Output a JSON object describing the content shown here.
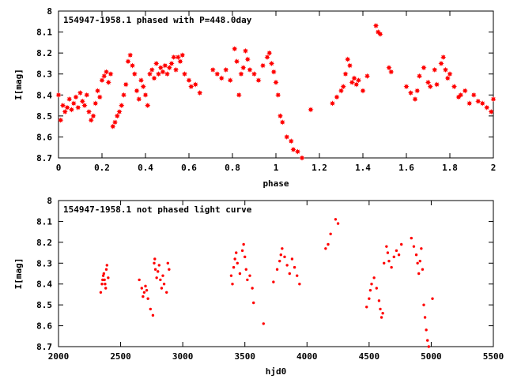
{
  "chart_data": [
    {
      "type": "scatter",
      "title": "154947-1958.1 phased with P=448.0day",
      "xlabel": "phase",
      "ylabel": "I[mag]",
      "xlim": [
        0,
        2
      ],
      "ylim": [
        8.7,
        8
      ],
      "y_inverted": true,
      "x_ticks": [
        "0",
        "0.2",
        "0.4",
        "0.6",
        "0.8",
        "1",
        "1.2",
        "1.4",
        "1.6",
        "1.8",
        "2"
      ],
      "y_ticks": [
        "8",
        "8.1",
        "8.2",
        "8.3",
        "8.4",
        "8.5",
        "8.6",
        "8.7"
      ],
      "marker": "filled-star",
      "color": "#ff0000",
      "series": [
        {
          "points": [
            [
              0.0,
              8.4
            ],
            [
              0.01,
              8.52
            ],
            [
              0.02,
              8.45
            ],
            [
              0.03,
              8.48
            ],
            [
              0.04,
              8.46
            ],
            [
              0.05,
              8.42
            ],
            [
              0.06,
              8.47
            ],
            [
              0.07,
              8.44
            ],
            [
              0.08,
              8.41
            ],
            [
              0.09,
              8.46
            ],
            [
              0.1,
              8.39
            ],
            [
              0.11,
              8.43
            ],
            [
              0.12,
              8.45
            ],
            [
              0.13,
              8.4
            ],
            [
              0.14,
              8.48
            ],
            [
              0.15,
              8.52
            ],
            [
              0.16,
              8.5
            ],
            [
              0.17,
              8.44
            ],
            [
              0.18,
              8.38
            ],
            [
              0.19,
              8.41
            ],
            [
              0.2,
              8.33
            ],
            [
              0.21,
              8.31
            ],
            [
              0.22,
              8.29
            ],
            [
              0.23,
              8.34
            ],
            [
              0.24,
              8.3
            ],
            [
              0.25,
              8.55
            ],
            [
              0.26,
              8.53
            ],
            [
              0.27,
              8.5
            ],
            [
              0.28,
              8.48
            ],
            [
              0.29,
              8.45
            ],
            [
              0.3,
              8.4
            ],
            [
              0.31,
              8.35
            ],
            [
              0.32,
              8.24
            ],
            [
              0.33,
              8.21
            ],
            [
              0.34,
              8.26
            ],
            [
              0.35,
              8.3
            ],
            [
              0.36,
              8.38
            ],
            [
              0.37,
              8.42
            ],
            [
              0.38,
              8.33
            ],
            [
              0.39,
              8.36
            ],
            [
              0.4,
              8.4
            ],
            [
              0.41,
              8.45
            ],
            [
              0.42,
              8.3
            ],
            [
              0.43,
              8.28
            ],
            [
              0.44,
              8.32
            ],
            [
              0.45,
              8.25
            ],
            [
              0.46,
              8.3
            ],
            [
              0.47,
              8.27
            ],
            [
              0.48,
              8.29
            ],
            [
              0.49,
              8.26
            ],
            [
              0.5,
              8.3
            ],
            [
              0.51,
              8.27
            ],
            [
              0.52,
              8.25
            ],
            [
              0.53,
              8.22
            ],
            [
              0.54,
              8.28
            ],
            [
              0.55,
              8.22
            ],
            [
              0.56,
              8.24
            ],
            [
              0.57,
              8.21
            ],
            [
              0.58,
              8.3
            ],
            [
              0.6,
              8.33
            ],
            [
              0.61,
              8.36
            ],
            [
              0.63,
              8.35
            ],
            [
              0.65,
              8.39
            ],
            [
              0.71,
              8.28
            ],
            [
              0.73,
              8.3
            ],
            [
              0.75,
              8.32
            ],
            [
              0.77,
              8.28
            ],
            [
              0.79,
              8.33
            ],
            [
              0.81,
              8.18
            ],
            [
              0.82,
              8.24
            ],
            [
              0.83,
              8.4
            ],
            [
              0.84,
              8.3
            ],
            [
              0.85,
              8.27
            ],
            [
              0.86,
              8.19
            ],
            [
              0.87,
              8.23
            ],
            [
              0.88,
              8.28
            ],
            [
              0.9,
              8.3
            ],
            [
              0.92,
              8.33
            ],
            [
              0.94,
              8.26
            ],
            [
              0.96,
              8.22
            ],
            [
              0.97,
              8.2
            ],
            [
              0.98,
              8.25
            ],
            [
              0.99,
              8.29
            ],
            [
              1.0,
              8.34
            ],
            [
              1.01,
              8.4
            ],
            [
              1.02,
              8.5
            ],
            [
              1.03,
              8.53
            ],
            [
              1.05,
              8.6
            ],
            [
              1.07,
              8.62
            ],
            [
              1.08,
              8.66
            ],
            [
              1.1,
              8.67
            ],
            [
              1.12,
              8.7
            ],
            [
              1.16,
              8.47
            ],
            [
              1.26,
              8.44
            ],
            [
              1.28,
              8.41
            ],
            [
              1.3,
              8.38
            ],
            [
              1.31,
              8.36
            ],
            [
              1.32,
              8.3
            ],
            [
              1.33,
              8.23
            ],
            [
              1.34,
              8.26
            ],
            [
              1.35,
              8.34
            ],
            [
              1.36,
              8.32
            ],
            [
              1.37,
              8.35
            ],
            [
              1.38,
              8.33
            ],
            [
              1.4,
              8.38
            ],
            [
              1.42,
              8.31
            ],
            [
              1.46,
              8.07
            ],
            [
              1.47,
              8.1
            ],
            [
              1.48,
              8.11
            ],
            [
              1.52,
              8.27
            ],
            [
              1.53,
              8.29
            ],
            [
              1.6,
              8.36
            ],
            [
              1.62,
              8.39
            ],
            [
              1.64,
              8.42
            ],
            [
              1.65,
              8.38
            ],
            [
              1.66,
              8.31
            ],
            [
              1.68,
              8.27
            ],
            [
              1.7,
              8.34
            ],
            [
              1.71,
              8.36
            ],
            [
              1.73,
              8.28
            ],
            [
              1.74,
              8.35
            ],
            [
              1.76,
              8.25
            ],
            [
              1.77,
              8.22
            ],
            [
              1.78,
              8.28
            ],
            [
              1.79,
              8.32
            ],
            [
              1.8,
              8.3
            ],
            [
              1.82,
              8.36
            ],
            [
              1.84,
              8.41
            ],
            [
              1.85,
              8.4
            ],
            [
              1.87,
              8.38
            ],
            [
              1.89,
              8.44
            ],
            [
              1.91,
              8.4
            ],
            [
              1.93,
              8.43
            ],
            [
              1.95,
              8.44
            ],
            [
              1.97,
              8.46
            ],
            [
              1.99,
              8.48
            ],
            [
              2.0,
              8.42
            ]
          ]
        }
      ]
    },
    {
      "type": "scatter",
      "title": "154947-1958.1 not phased light curve",
      "xlabel": "hjd0",
      "ylabel": "I[mag]",
      "xlim": [
        2000,
        5500
      ],
      "ylim": [
        8.7,
        8
      ],
      "y_inverted": true,
      "x_ticks": [
        "2000",
        "2500",
        "3000",
        "3500",
        "4000",
        "4500",
        "5000",
        "5500"
      ],
      "y_ticks": [
        "8",
        "8.1",
        "8.2",
        "8.3",
        "8.4",
        "8.5",
        "8.6",
        "8.7"
      ],
      "marker": "small-dot",
      "color": "#ff0000",
      "series": [
        {
          "points": [
            [
              2340,
              8.44
            ],
            [
              2350,
              8.4
            ],
            [
              2355,
              8.38
            ],
            [
              2360,
              8.36
            ],
            [
              2365,
              8.35
            ],
            [
              2370,
              8.38
            ],
            [
              2375,
              8.4
            ],
            [
              2380,
              8.42
            ],
            [
              2385,
              8.33
            ],
            [
              2390,
              8.31
            ],
            [
              2400,
              8.37
            ],
            [
              2650,
              8.38
            ],
            [
              2670,
              8.42
            ],
            [
              2680,
              8.46
            ],
            [
              2690,
              8.44
            ],
            [
              2700,
              8.41
            ],
            [
              2710,
              8.43
            ],
            [
              2720,
              8.47
            ],
            [
              2740,
              8.52
            ],
            [
              2760,
              8.55
            ],
            [
              2770,
              8.3
            ],
            [
              2775,
              8.28
            ],
            [
              2780,
              8.33
            ],
            [
              2790,
              8.37
            ],
            [
              2800,
              8.34
            ],
            [
              2810,
              8.31
            ],
            [
              2820,
              8.38
            ],
            [
              2830,
              8.42
            ],
            [
              2840,
              8.36
            ],
            [
              2850,
              8.4
            ],
            [
              2870,
              8.44
            ],
            [
              2880,
              8.3
            ],
            [
              2890,
              8.33
            ],
            [
              3390,
              8.36
            ],
            [
              3400,
              8.4
            ],
            [
              3410,
              8.32
            ],
            [
              3420,
              8.28
            ],
            [
              3430,
              8.25
            ],
            [
              3440,
              8.3
            ],
            [
              3460,
              8.35
            ],
            [
              3480,
              8.24
            ],
            [
              3490,
              8.21
            ],
            [
              3500,
              8.27
            ],
            [
              3510,
              8.33
            ],
            [
              3520,
              8.38
            ],
            [
              3540,
              8.36
            ],
            [
              3560,
              8.42
            ],
            [
              3570,
              8.49
            ],
            [
              3650,
              8.59
            ],
            [
              3730,
              8.39
            ],
            [
              3760,
              8.33
            ],
            [
              3780,
              8.29
            ],
            [
              3790,
              8.26
            ],
            [
              3800,
              8.23
            ],
            [
              3820,
              8.27
            ],
            [
              3840,
              8.31
            ],
            [
              3860,
              8.35
            ],
            [
              3880,
              8.28
            ],
            [
              3900,
              8.32
            ],
            [
              3920,
              8.36
            ],
            [
              3940,
              8.4
            ],
            [
              4150,
              8.23
            ],
            [
              4170,
              8.21
            ],
            [
              4190,
              8.16
            ],
            [
              4230,
              8.09
            ],
            [
              4250,
              8.11
            ],
            [
              4480,
              8.51
            ],
            [
              4500,
              8.47
            ],
            [
              4510,
              8.43
            ],
            [
              4520,
              8.4
            ],
            [
              4540,
              8.37
            ],
            [
              4560,
              8.42
            ],
            [
              4580,
              8.48
            ],
            [
              4590,
              8.52
            ],
            [
              4600,
              8.56
            ],
            [
              4610,
              8.54
            ],
            [
              4620,
              8.3
            ],
            [
              4640,
              8.22
            ],
            [
              4650,
              8.25
            ],
            [
              4660,
              8.29
            ],
            [
              4680,
              8.32
            ],
            [
              4700,
              8.27
            ],
            [
              4720,
              8.24
            ],
            [
              4740,
              8.26
            ],
            [
              4760,
              8.21
            ],
            [
              4840,
              8.18
            ],
            [
              4860,
              8.22
            ],
            [
              4880,
              8.26
            ],
            [
              4890,
              8.3
            ],
            [
              4900,
              8.35
            ],
            [
              4910,
              8.29
            ],
            [
              4920,
              8.23
            ],
            [
              4930,
              8.33
            ],
            [
              4940,
              8.5
            ],
            [
              4950,
              8.56
            ],
            [
              4960,
              8.62
            ],
            [
              4970,
              8.67
            ],
            [
              4980,
              8.7
            ],
            [
              5010,
              8.47
            ]
          ]
        }
      ]
    }
  ]
}
